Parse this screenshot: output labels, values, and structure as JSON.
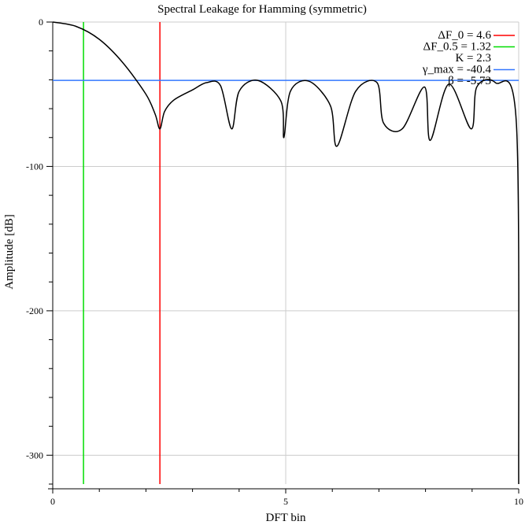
{
  "chart_data": {
    "type": "line",
    "title": "Spectral Leakage for Hamming (symmetric)",
    "xlabel": "DFT bin",
    "ylabel": "Amplitude [dB]",
    "xlim": [
      0,
      10
    ],
    "ylim": [
      -320,
      0
    ],
    "x_ticks": [
      0,
      5,
      10
    ],
    "y_ticks": [
      0,
      -100,
      -200,
      -300
    ],
    "x_tick_labels": [
      "0",
      "5",
      "10"
    ],
    "y_tick_labels": [
      "0",
      "-100",
      "-200",
      "-300"
    ],
    "grid": true,
    "legend_position": "top-right",
    "colors": {
      "curve": "#000000",
      "delta_f0": "#ff0000",
      "delta_f05": "#00dd00",
      "gamma_max": "#3377ff",
      "grid": "#cccccc"
    },
    "reference_lines": [
      {
        "label": "ΔF_0 = 4.6",
        "orientation": "vertical",
        "value": 2.3,
        "color": "#ff0000"
      },
      {
        "label": "ΔF_0.5 = 1.32",
        "orientation": "vertical",
        "value": 0.66,
        "color": "#00dd00"
      },
      {
        "label": "γ_max = -40.4",
        "orientation": "horizontal",
        "value": -40.4,
        "color": "#3377ff"
      }
    ],
    "legend": [
      {
        "label": "ΔF_0 = 4.6",
        "color": "#ff0000",
        "has_line": true
      },
      {
        "label": "ΔF_0.5 = 1.32",
        "color": "#00dd00",
        "has_line": true
      },
      {
        "label": "K = 2.3",
        "color": null,
        "has_line": false
      },
      {
        "label": "γ_max = -40.4",
        "color": "#3377ff",
        "has_line": true
      },
      {
        "label": "β = -5.73",
        "color": null,
        "has_line": false
      }
    ],
    "series": [
      {
        "x": [
          0,
          0.5,
          1.0,
          1.5,
          2.0,
          2.2,
          2.3,
          2.4,
          2.6,
          3.0,
          3.3,
          3.6,
          3.84,
          4.0,
          4.4,
          4.9,
          4.96,
          5.1,
          5.5,
          5.96,
          6.1,
          6.5,
          6.96,
          7.1,
          7.5,
          7.98,
          8.1,
          8.5,
          8.98,
          9.1,
          9.5,
          9.95,
          10.0
        ],
        "y": [
          0,
          -3,
          -12,
          -28,
          -50,
          -64,
          -74,
          -62,
          -54,
          -47,
          -42,
          -44,
          -74,
          -48,
          -40.4,
          -55,
          -80,
          -48,
          -41,
          -58,
          -86,
          -48,
          -42,
          -70,
          -74,
          -45,
          -82,
          -43,
          -74,
          -45,
          -42,
          -70,
          -320
        ]
      }
    ]
  }
}
